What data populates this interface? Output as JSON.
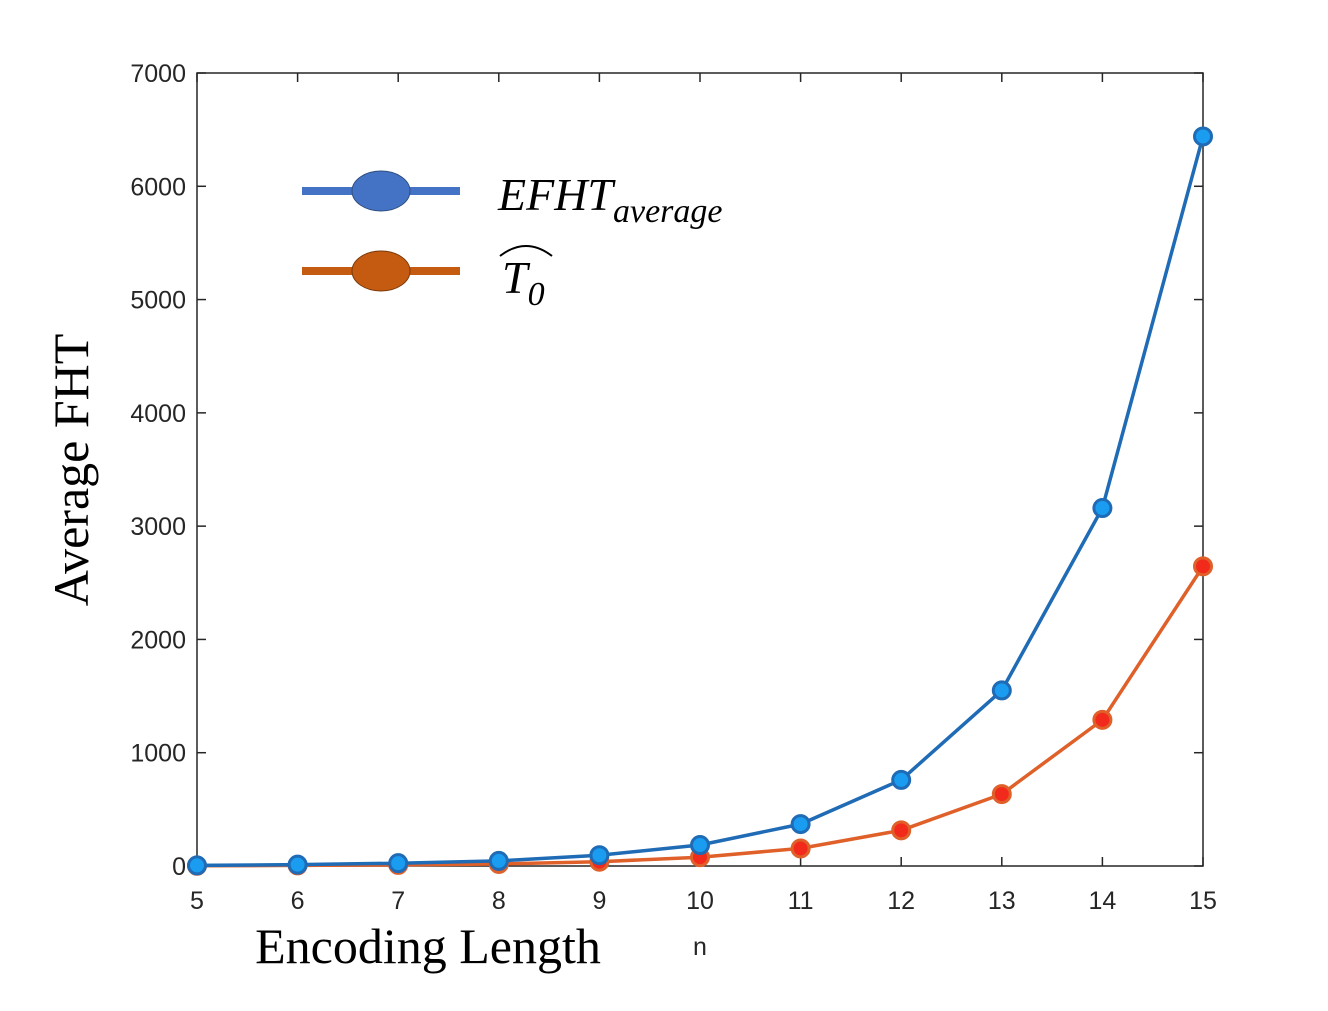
{
  "chart_data": {
    "type": "line",
    "title": "",
    "xlabel": "Encoding Length",
    "xlabel_secondary": "n",
    "ylabel": "Average FHT",
    "x": [
      5,
      6,
      7,
      8,
      9,
      10,
      11,
      12,
      13,
      14,
      15
    ],
    "xlim": [
      5,
      15
    ],
    "ylim": [
      0,
      7000
    ],
    "yticks": [
      0,
      1000,
      2000,
      3000,
      4000,
      5000,
      6000,
      7000
    ],
    "grid": false,
    "legend_position": "top-left",
    "series": [
      {
        "name": "EFHT",
        "name_subscript": "average",
        "values": [
          5,
          12,
          25,
          45,
          95,
          185,
          370,
          760,
          1550,
          3160,
          6440
        ],
        "line_color": "#1f6bb5",
        "marker_color": "#1a9cf0",
        "legend_marker_color": "#4472c4"
      },
      {
        "name": "T",
        "name_subscript": "0",
        "values": [
          2,
          5,
          10,
          18,
          38,
          78,
          155,
          315,
          635,
          1290,
          2645
        ],
        "line_color": "#e0602a",
        "marker_color": "#f22a1c",
        "legend_marker_color": "#c55a11"
      }
    ]
  }
}
